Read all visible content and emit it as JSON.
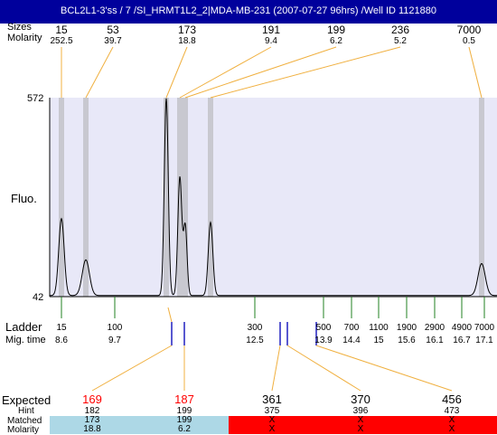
{
  "title": "BCL2L1-3'ss / 7 /SI_HRMT1L2_2|MDA-MB-231 (2007-07-27 96hrs) /Well ID 1121880",
  "header": {
    "sizes_label": "Sizes",
    "molarity_label": "Molarity"
  },
  "top_peaks": [
    {
      "size": "15",
      "molarity": "252.5"
    },
    {
      "size": "53",
      "molarity": "39.7"
    },
    {
      "size": "173",
      "molarity": "18.8"
    },
    {
      "size": "191",
      "molarity": "9.4"
    },
    {
      "size": "199",
      "molarity": "6.2"
    },
    {
      "size": "236",
      "molarity": "5.2"
    },
    {
      "size": "7000",
      "molarity": "0.5"
    }
  ],
  "y_axis": {
    "label": "Fluo.",
    "max": "572",
    "min": "42"
  },
  "ladder": {
    "label": "Ladder",
    "migtime_label": "Mig. time",
    "items": [
      {
        "size": "15",
        "time": "8.6"
      },
      {
        "size": "100",
        "time": "9.7"
      },
      {
        "size": "300",
        "time": "12.5"
      },
      {
        "size": "500",
        "time": "13.9"
      },
      {
        "size": "700",
        "time": "14.4"
      },
      {
        "size": "1100",
        "time": "15"
      },
      {
        "size": "1900",
        "time": "15.6"
      },
      {
        "size": "2900",
        "time": "16.1"
      },
      {
        "size": "4900",
        "time": "16.7"
      },
      {
        "size": "7000",
        "time": "17.1"
      }
    ]
  },
  "expected_table": {
    "expected_label": "Expected",
    "hint_label": "Hint",
    "matched_label": "Matched",
    "molarity_label": "Molarity",
    "columns": [
      {
        "expected": "169",
        "hint": "182",
        "matched": "173",
        "molarity": "18.8",
        "status": "matched"
      },
      {
        "expected": "187",
        "hint": "199",
        "matched": "199",
        "molarity": "6.2",
        "status": "matched"
      },
      {
        "expected": "361",
        "hint": "375",
        "matched": "X",
        "molarity": "X",
        "status": "unmatched"
      },
      {
        "expected": "370",
        "hint": "396",
        "matched": "X",
        "molarity": "X",
        "status": "unmatched"
      },
      {
        "expected": "456",
        "hint": "473",
        "matched": "X",
        "molarity": "X",
        "status": "unmatched"
      }
    ]
  },
  "colors": {
    "title_bg": "#00009c",
    "plot_bg": "#e8e8f8",
    "peak_band": "#c8c8d0",
    "leader_line": "#f0b040",
    "ladder_tick": "#208020",
    "marker_line": "#2020c0",
    "expected_red": "#ff0000",
    "matched_bg": "#add8e6",
    "unmatched_bg": "#ff0000"
  },
  "chart_data": {
    "type": "line",
    "title": "BCL2L1-3'ss / 7 /SI_HRMT1L2_2|MDA-MB-231 (2007-07-27 96hrs) /Well ID 1121880",
    "ylabel": "Fluo.",
    "xlabel": "",
    "ylim": [
      42,
      572
    ],
    "x_scale": "log-size (bp)",
    "series": [
      {
        "name": "",
        "peaks": [
          {
            "size": 15,
            "height": 250
          },
          {
            "size": 53,
            "height": 140
          },
          {
            "size": 173,
            "height": 570
          },
          {
            "size": 191,
            "height": 360
          },
          {
            "size": 199,
            "height": 230
          },
          {
            "size": 236,
            "height": 240
          },
          {
            "size": 7000,
            "height": 130
          }
        ]
      }
    ],
    "ladder_sizes": [
      15,
      100,
      300,
      500,
      700,
      1100,
      1900,
      2900,
      4900,
      7000
    ]
  }
}
